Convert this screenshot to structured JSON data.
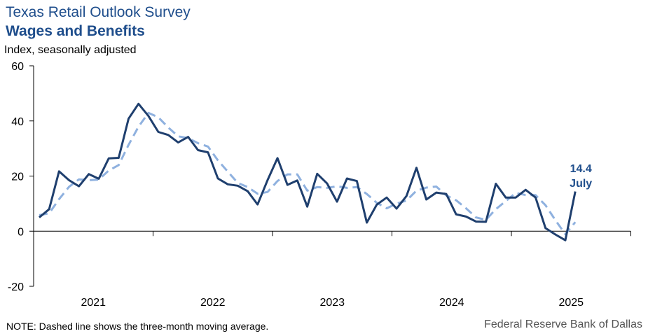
{
  "header": {
    "title": "Texas Retail Outlook Survey",
    "subtitle": "Wages and Benefits",
    "units": "Index, seasonally adjusted"
  },
  "footer": {
    "note": "NOTE: Dashed line shows the three-month moving average.",
    "source": "Federal Reserve Bank of Dallas"
  },
  "chart_data": {
    "type": "line",
    "x_start": "2021-01",
    "x_end": "2025-07",
    "x_tick_labels": [
      "2021",
      "2022",
      "2023",
      "2024",
      "2025"
    ],
    "y_tick_labels": [
      "60",
      "40",
      "20",
      "0",
      "-20"
    ],
    "ylim": [
      -20,
      60
    ],
    "grid": false,
    "annotation": {
      "value": "14.4",
      "label": "July"
    },
    "colors": {
      "index": "#1f3f6e",
      "moving_average": "#8fb1df"
    },
    "series": [
      {
        "key": "index",
        "style": "solid",
        "values": [
          5,
          8,
          21.7,
          18.5,
          16.3,
          20.7,
          19,
          26.4,
          26.6,
          40.8,
          46.2,
          41.8,
          36,
          34.9,
          32.2,
          34.2,
          29.4,
          28.6,
          19.1,
          17,
          16.5,
          14.5,
          9.7,
          18.5,
          26.5,
          16.8,
          18.4,
          8.9,
          20.8,
          17.3,
          10.7,
          19.1,
          18.2,
          3.1,
          9.6,
          12.2,
          8.2,
          12.8,
          23,
          11.5,
          14,
          13.5,
          6.1,
          5.3,
          3.5,
          3.4,
          17.2,
          12.2,
          12.2,
          15,
          12.2,
          1.1,
          -1.2,
          -3.3,
          14.4
        ]
      },
      {
        "key": "moving_average",
        "style": "dashed",
        "values": [
          5.8,
          6.5,
          11.6,
          16.1,
          18.8,
          18.5,
          18.7,
          22.0,
          24.0,
          31.3,
          37.9,
          42.9,
          41.3,
          37.6,
          34.4,
          33.8,
          31.9,
          30.7,
          25.7,
          21.6,
          17.5,
          16.0,
          13.6,
          14.2,
          18.2,
          20.6,
          20.6,
          14.7,
          16.0,
          15.7,
          16.3,
          15.7,
          16.0,
          13.5,
          10.3,
          8.3,
          10.0,
          11.1,
          14.7,
          15.8,
          16.2,
          13.0,
          11.2,
          8.3,
          5.0,
          4.1,
          8.0,
          10.9,
          13.9,
          13.1,
          13.1,
          9.4,
          4.0,
          -1.1,
          3.3
        ]
      }
    ]
  }
}
